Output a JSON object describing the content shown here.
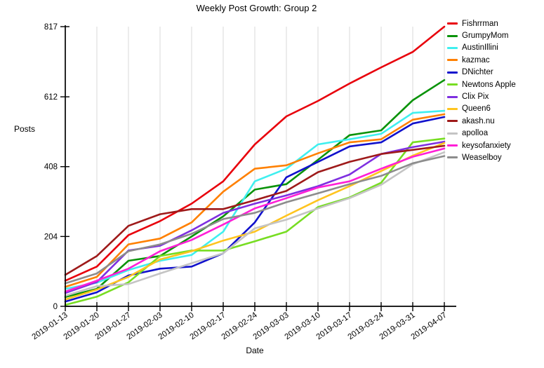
{
  "title": "Weekly Post Growth: Group 2",
  "x_axis": {
    "label": "Date"
  },
  "y_axis": {
    "label": "Posts"
  },
  "colors": {
    "axis": "#000000",
    "grid": "#d8d8d8",
    "background": "#ffffff"
  },
  "chart_data": {
    "type": "line",
    "title": "Weekly Post Growth: Group 2",
    "xlabel": "Date",
    "ylabel": "Posts",
    "x": [
      "2019-01-13",
      "2019-01-20",
      "2019-01-27",
      "2019-02-03",
      "2019-02-10",
      "2019-02-17",
      "2019-02-24",
      "2019-03-03",
      "2019-03-10",
      "2019-03-17",
      "2019-03-24",
      "2019-03-31",
      "2019-04-07"
    ],
    "ylim": [
      0,
      817
    ],
    "yticks": [
      0,
      204,
      408,
      612,
      817
    ],
    "grid": "vertical",
    "legend_position": "right",
    "series": [
      {
        "name": "Fishrrman",
        "color": "#e8000b",
        "values": [
          75,
          116,
          208,
          249,
          300,
          365,
          473,
          555,
          600,
          651,
          698,
          743,
          817
        ]
      },
      {
        "name": "GrumpyMom",
        "color": "#0a930a",
        "values": [
          27,
          51,
          133,
          147,
          204,
          263,
          341,
          357,
          428,
          500,
          514,
          602,
          661
        ]
      },
      {
        "name": "AustinIllini",
        "color": "#3fefef",
        "values": [
          51,
          69,
          106,
          133,
          150,
          218,
          365,
          402,
          473,
          488,
          504,
          565,
          571
        ]
      },
      {
        "name": "kazmac",
        "color": "#ff8000",
        "values": [
          57,
          86,
          181,
          198,
          245,
          335,
          402,
          412,
          447,
          479,
          488,
          545,
          561
        ]
      },
      {
        "name": "DNichter",
        "color": "#1111cc",
        "values": [
          14,
          41,
          90,
          110,
          116,
          155,
          245,
          377,
          422,
          467,
          479,
          534,
          553
        ]
      },
      {
        "name": "Newtons Apple",
        "color": "#77dd22",
        "values": [
          4,
          28,
          70,
          147,
          163,
          163,
          190,
          218,
          290,
          318,
          361,
          479,
          490
        ]
      },
      {
        "name": "Clix Pix",
        "color": "#7e2fe0",
        "values": [
          39,
          71,
          163,
          177,
          222,
          273,
          300,
          324,
          351,
          385,
          445,
          465,
          481
        ]
      },
      {
        "name": "Queen6",
        "color": "#ffc41e",
        "values": [
          20,
          49,
          86,
          137,
          161,
          192,
          218,
          265,
          310,
          351,
          395,
          440,
          477
        ]
      },
      {
        "name": "akash.nu",
        "color": "#9e1a1a",
        "values": [
          92,
          147,
          235,
          269,
          284,
          284,
          310,
          337,
          392,
          422,
          445,
          457,
          469
        ]
      },
      {
        "name": "apolloa",
        "color": "#c4c4c4",
        "values": [
          31,
          59,
          65,
          96,
          126,
          155,
          228,
          253,
          286,
          316,
          355,
          415,
          450
        ]
      },
      {
        "name": "keysofanxiety",
        "color": "#ff1fd6",
        "values": [
          43,
          75,
          110,
          161,
          194,
          239,
          286,
          316,
          347,
          365,
          402,
          437,
          461
        ]
      },
      {
        "name": "Weaselboy",
        "color": "#8c8c8c",
        "values": [
          67,
          96,
          161,
          181,
          212,
          255,
          273,
          304,
          330,
          357,
          381,
          418,
          439
        ]
      }
    ]
  }
}
